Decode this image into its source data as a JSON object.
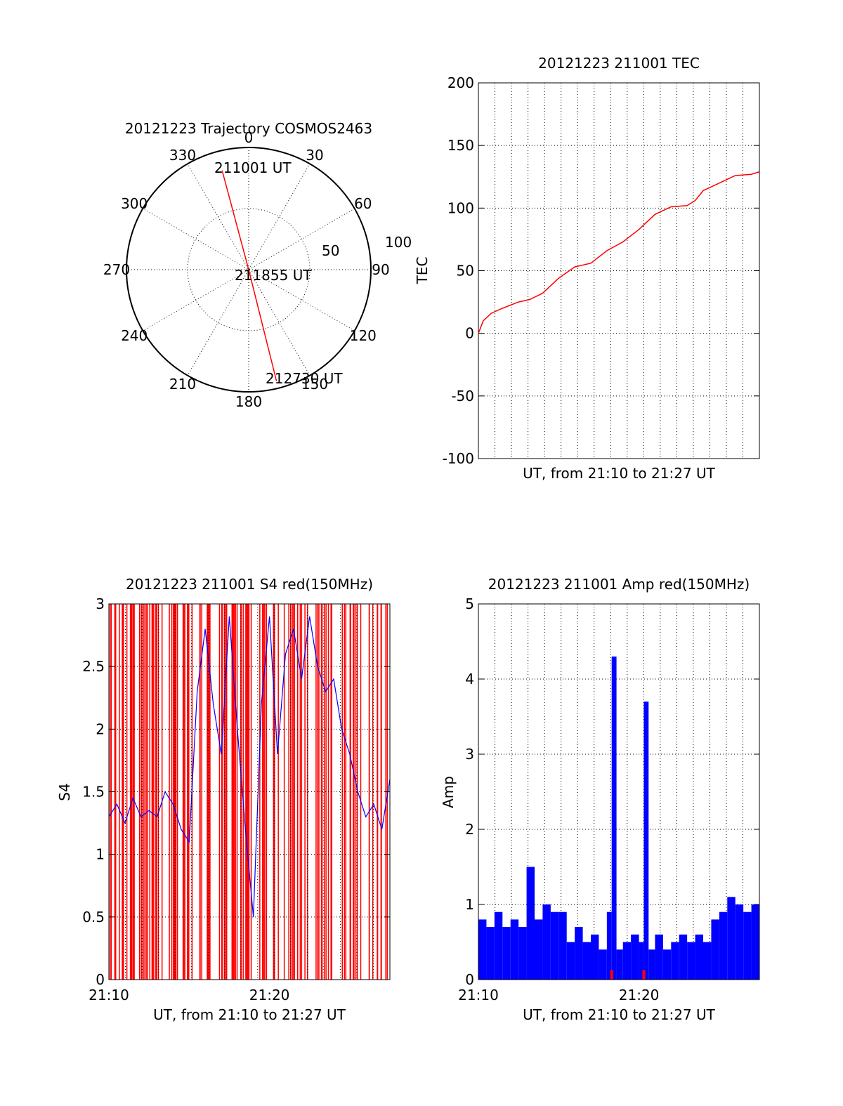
{
  "chart_data": [
    {
      "type": "polar",
      "title": "20121223 Trajectory COSMOS2463",
      "angle_labels": [
        "0",
        "30",
        "60",
        "90",
        "120",
        "150",
        "180",
        "210",
        "240",
        "270",
        "300",
        "330"
      ],
      "radius_labels": [
        "50",
        "100"
      ],
      "rmax": 100,
      "grid": true,
      "trajectory": {
        "color": "#ff0000",
        "points": [
          {
            "az": 345,
            "r": 84,
            "label": "211001 UT"
          },
          {
            "az": 0,
            "r": 0,
            "label": "211855 UT"
          },
          {
            "az": 166,
            "r": 94,
            "label": "212730 UT"
          }
        ]
      }
    },
    {
      "type": "line",
      "title": "20121223 211001 TEC",
      "xlabel": "UT, from 21:10 to 21:27 UT",
      "ylabel": "TEC",
      "xlim": [
        0,
        17.5
      ],
      "ylim": [
        -100,
        200
      ],
      "yticks": [
        "-100",
        "-50",
        "0",
        "50",
        "100",
        "150",
        "200"
      ],
      "grid": true,
      "series": [
        {
          "color": "#ff0000",
          "x": [
            0,
            0.3,
            0.8,
            1.5,
            2.5,
            3.2,
            4.0,
            5.0,
            6.0,
            7.0,
            8.0,
            9.0,
            10.0,
            11.0,
            12.0,
            13.0,
            13.5,
            14.0,
            15.0,
            16.0,
            17.0,
            17.5
          ],
          "y": [
            0,
            10,
            16,
            20,
            25,
            27,
            32,
            44,
            53,
            56,
            66,
            73,
            83,
            95,
            101,
            102,
            106,
            114,
            120,
            126,
            127,
            129
          ]
        }
      ]
    },
    {
      "type": "line",
      "title": "20121223 211001 S4 red(150MHz)",
      "xlabel": "UT, from 21:10 to 21:27 UT",
      "ylabel": "S4",
      "xlim": [
        0,
        17.5
      ],
      "ylim": [
        0,
        3
      ],
      "yticks": [
        "0",
        "0.5",
        "1",
        "1.5",
        "2",
        "2.5",
        "3"
      ],
      "xticks": [
        {
          "x": 0,
          "label": "21:10"
        },
        {
          "x": 10,
          "label": "21:20"
        }
      ],
      "grid": true,
      "series": [
        {
          "name": "",
          "color": "#ff0000",
          "style": "dense-spikes"
        },
        {
          "color": "#0000ff",
          "x": [
            0,
            0.5,
            1.0,
            1.5,
            2.0,
            2.5,
            3.0,
            3.5,
            4.0,
            4.5,
            5.0,
            5.5,
            6.0,
            6.5,
            7.0,
            7.5,
            8.0,
            8.5,
            9.0,
            9.5,
            10.0,
            10.5,
            11.0,
            11.5,
            12.0,
            12.5,
            13.0,
            13.5,
            14.0,
            14.5,
            15.0,
            15.5,
            16.0,
            16.5,
            17.0,
            17.5
          ],
          "y": [
            1.3,
            1.4,
            1.25,
            1.45,
            1.3,
            1.35,
            1.3,
            1.5,
            1.4,
            1.2,
            1.1,
            2.3,
            2.8,
            2.2,
            1.8,
            2.9,
            2.0,
            1.2,
            0.5,
            2.2,
            2.9,
            1.8,
            2.6,
            2.8,
            2.4,
            2.9,
            2.5,
            2.3,
            2.4,
            2.0,
            1.8,
            1.5,
            1.3,
            1.4,
            1.2,
            1.6
          ]
        }
      ]
    },
    {
      "type": "line",
      "title": "20121223 211001 Amp red(150MHz)",
      "xlabel": "UT, from 21:10 to 21:27 UT",
      "ylabel": "Amp",
      "xlim": [
        0,
        17.5
      ],
      "ylim": [
        0,
        5
      ],
      "yticks": [
        "0",
        "1",
        "2",
        "3",
        "4",
        "5"
      ],
      "xticks": [
        {
          "x": 0,
          "label": "21:10"
        },
        {
          "x": 10,
          "label": "21:20"
        }
      ],
      "grid": true,
      "series": [
        {
          "color": "#0000ff",
          "x": [
            0,
            0.5,
            1.0,
            1.5,
            2.0,
            2.5,
            3.0,
            3.5,
            4.0,
            4.5,
            5.0,
            5.5,
            6.0,
            6.5,
            7.0,
            7.5,
            8.0,
            8.3,
            8.6,
            9.0,
            9.5,
            10.0,
            10.3,
            10.6,
            11.0,
            11.5,
            12.0,
            12.5,
            13.0,
            13.5,
            14.0,
            14.5,
            15.0,
            15.5,
            16.0,
            16.5,
            17.0,
            17.5
          ],
          "y": [
            0.8,
            0.7,
            0.9,
            0.7,
            0.8,
            0.7,
            1.5,
            0.8,
            1.0,
            0.9,
            0.9,
            0.5,
            0.7,
            0.5,
            0.6,
            0.4,
            0.9,
            4.3,
            0.4,
            0.5,
            0.6,
            0.5,
            3.7,
            0.4,
            0.6,
            0.4,
            0.5,
            0.6,
            0.5,
            0.6,
            0.5,
            0.8,
            0.9,
            1.1,
            1.0,
            0.9,
            1.0,
            0.8
          ]
        },
        {
          "color": "#ff0000",
          "marks": [
            8.3,
            10.3
          ]
        }
      ]
    }
  ]
}
